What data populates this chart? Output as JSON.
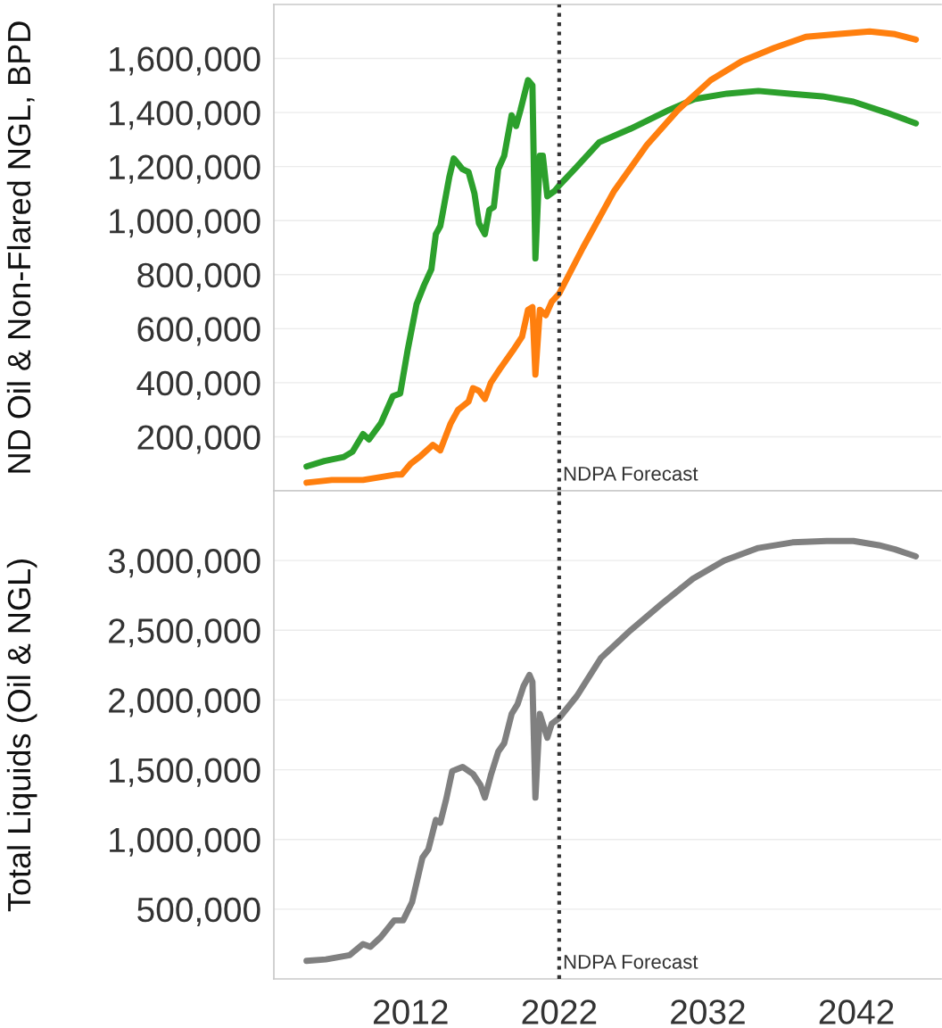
{
  "chart_data": [
    {
      "type": "line",
      "ylabel": "ND Oil & Non-Flared NGL, BPD",
      "xlim": [
        2002.8,
        2047.7
      ],
      "ylim": [
        0,
        1800000
      ],
      "yticks": [
        {
          "value": 200000,
          "label": "200,000"
        },
        {
          "value": 400000,
          "label": "400,000"
        },
        {
          "value": 600000,
          "label": "600,000"
        },
        {
          "value": 800000,
          "label": "800,000"
        },
        {
          "value": 1000000,
          "label": "1,000,000"
        },
        {
          "value": 1200000,
          "label": "1,200,000"
        },
        {
          "value": 1400000,
          "label": "1,400,000"
        },
        {
          "value": 1600000,
          "label": "1,600,000"
        }
      ],
      "grid": "y",
      "tick_labels": "y",
      "ref_lines": [
        {
          "axis": "x",
          "value": 2022,
          "label": "NDPA Forecast",
          "color": "#333333",
          "line_style": "dotted"
        }
      ],
      "series": [
        {
          "color": "#2ca02c",
          "x": [
            2005.0,
            2006.2,
            2007.5,
            2008.1,
            2008.8,
            2009.2,
            2010.0,
            2010.8,
            2011.3,
            2011.8,
            2012.4,
            2012.9,
            2013.4,
            2013.7,
            2014.0,
            2014.6,
            2014.9,
            2015.5,
            2015.9,
            2016.3,
            2016.6,
            2017.0,
            2017.3,
            2017.6,
            2017.9,
            2018.3,
            2018.8,
            2019.1,
            2019.4,
            2019.9,
            2020.2,
            2020.4,
            2020.7,
            2020.9,
            2021.2,
            2021.7,
            2022.0,
            2023.2,
            2024.7,
            2026.8,
            2029.4,
            2031.1,
            2033.3,
            2035.4,
            2037.5,
            2039.7,
            2041.8,
            2044.0,
            2046.0
          ],
          "values": [
            90000,
            110000,
            125000,
            145000,
            210000,
            190000,
            250000,
            350000,
            360000,
            520000,
            690000,
            760000,
            820000,
            950000,
            980000,
            1160000,
            1230000,
            1190000,
            1180000,
            1100000,
            990000,
            950000,
            1040000,
            1050000,
            1190000,
            1240000,
            1390000,
            1350000,
            1410000,
            1520000,
            1500000,
            860000,
            1240000,
            1240000,
            1090000,
            1110000,
            1130000,
            1200000,
            1290000,
            1340000,
            1410000,
            1450000,
            1470000,
            1480000,
            1470000,
            1460000,
            1440000,
            1400000,
            1360000
          ]
        },
        {
          "color": "#ff7f0e",
          "x": [
            2005.0,
            2006.7,
            2008.8,
            2011.0,
            2011.4,
            2012.0,
            2012.7,
            2013.5,
            2014.0,
            2014.7,
            2015.2,
            2015.9,
            2016.2,
            2016.6,
            2017.0,
            2017.4,
            2018.0,
            2018.9,
            2019.5,
            2019.9,
            2020.2,
            2020.4,
            2020.7,
            2021.1,
            2021.5,
            2022.0,
            2023.6,
            2025.7,
            2027.9,
            2030.0,
            2032.2,
            2034.3,
            2036.5,
            2038.6,
            2040.7,
            2042.9,
            2044.6,
            2046.0
          ],
          "values": [
            30000,
            40000,
            40000,
            60000,
            60000,
            100000,
            130000,
            170000,
            150000,
            250000,
            300000,
            330000,
            380000,
            370000,
            340000,
            400000,
            450000,
            520000,
            570000,
            670000,
            680000,
            430000,
            670000,
            650000,
            700000,
            730000,
            900000,
            1110000,
            1280000,
            1410000,
            1520000,
            1590000,
            1640000,
            1680000,
            1690000,
            1700000,
            1690000,
            1670000
          ]
        }
      ]
    },
    {
      "type": "line",
      "ylabel": "Total Liquids (Oil & NGL)",
      "xlim": [
        2002.8,
        2047.7
      ],
      "xticks": [
        2012,
        2022,
        2032,
        2042
      ],
      "ylim": [
        0,
        3500000
      ],
      "yticks": [
        {
          "value": 500000,
          "label": "500,000"
        },
        {
          "value": 1000000,
          "label": "1,000,000"
        },
        {
          "value": 1500000,
          "label": "1,500,000"
        },
        {
          "value": 2000000,
          "label": "2,000,000"
        },
        {
          "value": 2500000,
          "label": "2,500,000"
        },
        {
          "value": 3000000,
          "label": "3,000,000"
        }
      ],
      "grid": "y",
      "ref_lines": [
        {
          "axis": "x",
          "value": 2022,
          "label": "NDPA Forecast",
          "color": "#333333",
          "line_style": "dotted"
        }
      ],
      "series": [
        {
          "color": "#808080",
          "x": [
            2005.0,
            2006.3,
            2007.9,
            2008.8,
            2009.3,
            2010.0,
            2010.9,
            2011.5,
            2012.1,
            2012.8,
            2013.2,
            2013.7,
            2014.0,
            2014.4,
            2014.8,
            2015.5,
            2016.2,
            2016.7,
            2017.0,
            2017.4,
            2017.9,
            2018.3,
            2018.8,
            2019.2,
            2019.6,
            2020.0,
            2020.2,
            2020.4,
            2020.7,
            2021.2,
            2021.5,
            2022.0,
            2023.2,
            2024.8,
            2026.8,
            2028.9,
            2031.0,
            2033.1,
            2035.4,
            2037.7,
            2040.0,
            2041.8,
            2043.5,
            2044.6,
            2046.0
          ],
          "values": [
            130000,
            140000,
            170000,
            250000,
            230000,
            300000,
            420000,
            420000,
            550000,
            870000,
            930000,
            1140000,
            1120000,
            1290000,
            1490000,
            1520000,
            1470000,
            1390000,
            1300000,
            1460000,
            1630000,
            1690000,
            1900000,
            1970000,
            2100000,
            2180000,
            2130000,
            1300000,
            1900000,
            1730000,
            1830000,
            1870000,
            2030000,
            2300000,
            2500000,
            2690000,
            2870000,
            3000000,
            3090000,
            3130000,
            3140000,
            3140000,
            3110000,
            3080000,
            3030000
          ]
        }
      ]
    }
  ]
}
